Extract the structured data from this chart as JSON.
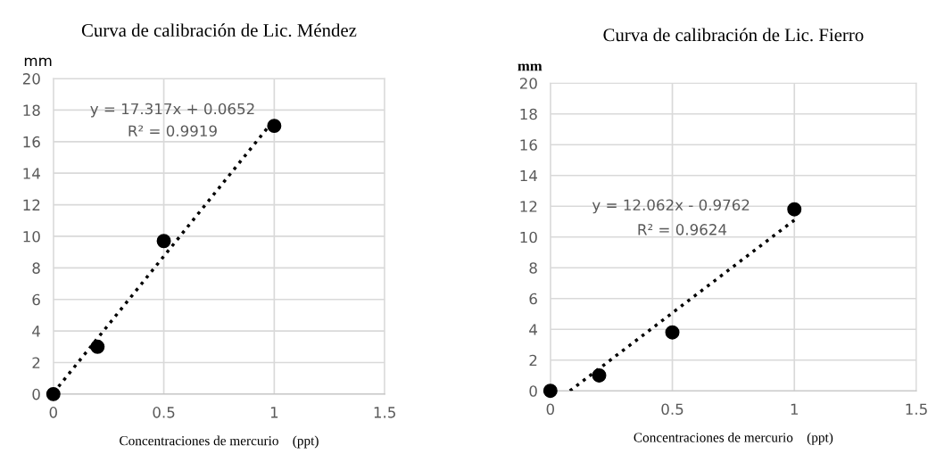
{
  "chart_data": [
    {
      "type": "scatter",
      "title": "Curva de calibración de Lic. Méndez",
      "xlabel": "Concentraciones de mercurio    (ppt)",
      "ylabel": "mm",
      "series": [
        {
          "color": "#000000",
          "x": [
            0,
            0.2,
            0.5,
            1
          ],
          "values": [
            0,
            3,
            9.7,
            17
          ],
          "marker": "circle"
        },
        {
          "type": "line",
          "color": "#000000",
          "x": [
            0,
            1
          ],
          "values": [
            0.07,
            17.4
          ],
          "line_style": "dotted",
          "marker": "none"
        }
      ],
      "annotations": [
        "y = 17.317x + 0.0652",
        "R² = 0.9919"
      ],
      "xlim": [
        0,
        1.5
      ],
      "xticks": [
        0,
        0.5,
        1,
        1.5
      ],
      "ylim": [
        0,
        20
      ],
      "yticks": [
        0,
        2,
        4,
        6,
        8,
        10,
        12,
        14,
        16,
        18,
        20
      ],
      "grid": true,
      "legend": false
    },
    {
      "type": "scatter",
      "title": "Curva de calibración de Lic. Fierro",
      "xlabel": "Concentraciones de mercurio    (ppt)",
      "ylabel": "mm",
      "series": [
        {
          "color": "#000000",
          "x": [
            0,
            0.2,
            0.5,
            1
          ],
          "values": [
            0,
            1,
            3.8,
            11.8
          ],
          "marker": "circle"
        },
        {
          "type": "line",
          "color": "#000000",
          "x": [
            0.08,
            1
          ],
          "values": [
            0,
            11.1
          ],
          "line_style": "dotted",
          "marker": "none"
        }
      ],
      "annotations": [
        "y = 12.062x - 0.9762",
        "R² = 0.9624"
      ],
      "xlim": [
        0,
        1.5
      ],
      "xticks": [
        0,
        0.5,
        1,
        1.5
      ],
      "ylim": [
        0,
        20
      ],
      "yticks": [
        0,
        2,
        4,
        6,
        8,
        10,
        12,
        14,
        16,
        18,
        20
      ],
      "grid": true,
      "legend": false
    }
  ]
}
